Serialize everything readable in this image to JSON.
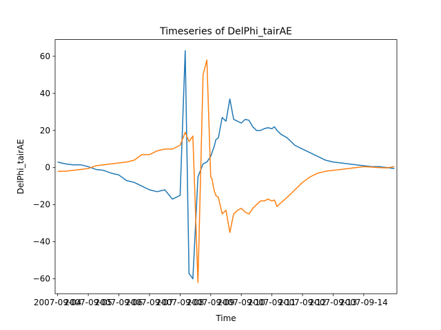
{
  "chart_data": {
    "type": "line",
    "title": "Timeseries of DelPhi_tairAE",
    "xlabel": "Time",
    "ylabel": "DelPhi_tairAE",
    "xlim": [
      "2007-09-03T22:00",
      "2007-09-15T02:00"
    ],
    "ylim": [
      -68,
      69
    ],
    "x_ticks": [
      "2007-09-04",
      "2007-09-05",
      "2007-09-06",
      "2007-09-07",
      "2007-09-08",
      "2007-09-09",
      "2007-09-10",
      "2007-09-11",
      "2007-09-12",
      "2007-09-13",
      "2007-09-14"
    ],
    "y_ticks": [
      -60,
      -40,
      -20,
      0,
      20,
      40,
      60
    ],
    "grid": false,
    "x": [
      "2007-09-04T00:00",
      "2007-09-04T06:00",
      "2007-09-04T12:00",
      "2007-09-04T18:00",
      "2007-09-05T00:00",
      "2007-09-05T06:00",
      "2007-09-05T12:00",
      "2007-09-05T18:00",
      "2007-09-06T00:00",
      "2007-09-06T06:00",
      "2007-09-06T12:00",
      "2007-09-06T18:00",
      "2007-09-07T00:00",
      "2007-09-07T06:00",
      "2007-09-07T12:00",
      "2007-09-07T18:00",
      "2007-09-08T00:00",
      "2007-09-08T04:00",
      "2007-09-08T07:00",
      "2007-09-08T10:00",
      "2007-09-08T14:00",
      "2007-09-08T18:00",
      "2007-09-08T21:00",
      "2007-09-09T00:00",
      "2007-09-09T01:00",
      "2007-09-09T02:00",
      "2007-09-09T03:00",
      "2007-09-09T04:00",
      "2007-09-09T06:00",
      "2007-09-09T09:00",
      "2007-09-09T12:00",
      "2007-09-09T15:00",
      "2007-09-09T18:00",
      "2007-09-09T21:00",
      "2007-09-10T00:00",
      "2007-09-10T03:00",
      "2007-09-10T06:00",
      "2007-09-10T09:00",
      "2007-09-10T12:00",
      "2007-09-10T15:00",
      "2007-09-10T18:00",
      "2007-09-10T21:00",
      "2007-09-11T00:00",
      "2007-09-11T02:00",
      "2007-09-11T04:00",
      "2007-09-11T07:00",
      "2007-09-11T12:00",
      "2007-09-11T18:00",
      "2007-09-12T00:00",
      "2007-09-12T06:00",
      "2007-09-12T12:00",
      "2007-09-12T18:00",
      "2007-09-13T00:00",
      "2007-09-13T06:00",
      "2007-09-13T12:00",
      "2007-09-13T18:00",
      "2007-09-14T00:00",
      "2007-09-14T06:00",
      "2007-09-14T12:00",
      "2007-09-14T18:00",
      "2007-09-15T00:00"
    ],
    "series": [
      {
        "color": "#1f77b4",
        "values": [
          3,
          2,
          1.5,
          1.5,
          0.5,
          -1,
          -1.5,
          -3,
          -4,
          -7,
          -8,
          -10,
          -12,
          -13,
          -12,
          -17,
          -15,
          63,
          -57,
          -60,
          -5,
          2,
          3,
          6,
          8,
          10,
          12,
          15,
          16,
          27,
          25,
          37,
          26,
          25,
          24,
          26,
          25.5,
          22,
          20,
          20,
          21,
          21.5,
          21,
          22,
          20,
          18,
          16,
          12,
          10,
          8,
          6,
          4,
          3,
          2.5,
          2,
          1.5,
          1,
          0.5,
          0.5,
          0,
          -0.5
        ]
      },
      {
        "color": "#ff7f0e",
        "values": [
          -2,
          -2,
          -1.5,
          -1,
          -0.5,
          1,
          1.5,
          2,
          2.5,
          3,
          4,
          7,
          7,
          9,
          10,
          10,
          12,
          19,
          14,
          17,
          -62,
          50,
          58,
          -5,
          -6,
          -10,
          -13,
          -15,
          -16,
          -25,
          -23,
          -35,
          -25,
          -23,
          -22,
          -24,
          -25,
          -22,
          -20,
          -18,
          -18,
          -17,
          -18,
          -17.5,
          -21,
          -19,
          -16,
          -12,
          -8,
          -5,
          -3,
          -2,
          -1.5,
          -1,
          -0.5,
          0,
          0.5,
          0.3,
          0,
          -0.2,
          0.5
        ]
      }
    ]
  }
}
